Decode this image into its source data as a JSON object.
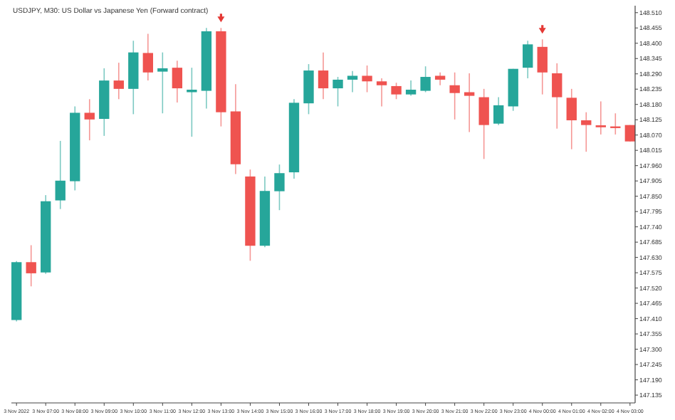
{
  "chart_data": {
    "type": "candlestick",
    "title": "USDJPY, M30: US Dollar vs Japanese Yen (Forward contract)",
    "categories": [
      "3 Nov 2022",
      null,
      "3 Nov 07:00",
      null,
      "3 Nov 08:00",
      null,
      "3 Nov 09:00",
      null,
      "3 Nov 10:00",
      null,
      "3 Nov 11:00",
      null,
      "3 Nov 12:00",
      null,
      "3 Nov 13:00",
      null,
      "3 Nov 14:00",
      null,
      "3 Nov 15:00",
      null,
      "3 Nov 16:00",
      null,
      "3 Nov 17:00",
      null,
      "3 Nov 18:00",
      null,
      "3 Nov 19:00",
      null,
      "3 Nov 20:00",
      null,
      "3 Nov 21:00",
      null,
      "3 Nov 22:00",
      null,
      "3 Nov 23:00",
      null,
      "4 Nov 00:00",
      null,
      "4 Nov 01:00",
      null,
      "4 Nov 02:00",
      null,
      "4 Nov 03:00"
    ],
    "ohlc": [
      [
        147.405,
        147.617,
        147.4,
        147.613
      ],
      [
        147.613,
        147.674,
        147.526,
        147.573
      ],
      [
        147.576,
        147.854,
        147.571,
        147.832
      ],
      [
        147.835,
        148.049,
        147.804,
        147.906
      ],
      [
        147.904,
        148.173,
        147.871,
        148.15
      ],
      [
        148.15,
        148.199,
        148.051,
        148.126
      ],
      [
        148.128,
        148.31,
        148.067,
        148.266
      ],
      [
        148.266,
        148.33,
        148.199,
        148.236
      ],
      [
        148.236,
        148.409,
        148.145,
        148.367
      ],
      [
        148.365,
        148.434,
        148.266,
        148.295
      ],
      [
        148.298,
        148.367,
        148.148,
        148.31
      ],
      [
        148.312,
        148.337,
        148.187,
        148.238
      ],
      [
        148.224,
        148.312,
        148.064,
        148.233
      ],
      [
        148.229,
        148.455,
        148.165,
        148.443
      ],
      [
        148.443,
        148.455,
        148.101,
        148.152
      ],
      [
        148.155,
        148.253,
        147.93,
        147.965
      ],
      [
        147.921,
        147.946,
        147.618,
        147.672
      ],
      [
        147.672,
        147.921,
        147.667,
        147.869
      ],
      [
        147.868,
        147.964,
        147.8,
        147.933
      ],
      [
        147.936,
        148.199,
        147.913,
        148.186
      ],
      [
        148.184,
        148.325,
        148.145,
        148.302
      ],
      [
        148.302,
        148.367,
        148.199,
        148.238
      ],
      [
        148.238,
        148.279,
        148.173,
        148.269
      ],
      [
        148.269,
        148.3,
        148.224,
        148.283
      ],
      [
        148.283,
        148.32,
        148.224,
        148.263
      ],
      [
        148.263,
        148.274,
        148.173,
        148.249
      ],
      [
        148.246,
        148.258,
        148.199,
        148.216
      ],
      [
        148.216,
        148.266,
        148.211,
        148.233
      ],
      [
        148.229,
        148.317,
        148.224,
        148.279
      ],
      [
        148.283,
        148.295,
        148.249,
        148.269
      ],
      [
        148.249,
        148.295,
        148.126,
        148.221
      ],
      [
        148.224,
        148.292,
        148.081,
        148.211
      ],
      [
        148.206,
        148.236,
        147.984,
        148.106
      ],
      [
        148.111,
        148.206,
        148.106,
        148.177
      ],
      [
        148.173,
        148.308,
        148.157,
        148.308
      ],
      [
        148.312,
        148.409,
        148.274,
        148.396
      ],
      [
        148.387,
        148.414,
        148.216,
        148.295
      ],
      [
        148.292,
        148.328,
        148.093,
        148.206
      ],
      [
        148.204,
        148.236,
        148.019,
        148.123
      ],
      [
        148.123,
        148.152,
        148.01,
        148.106
      ],
      [
        148.105,
        148.191,
        148.072,
        148.098
      ],
      [
        148.101,
        148.148,
        148.072,
        148.095
      ],
      [
        148.106,
        148.106,
        148.047,
        148.047
      ]
    ],
    "colors": [
      "#26a69a",
      "#ef5350",
      "#26a69a",
      "#26a69a",
      "#26a69a",
      "#ef5350",
      "#26a69a",
      "#ef5350",
      "#26a69a",
      "#ef5350",
      "#26a69a",
      "#ef5350",
      "#26a69a",
      "#26a69a",
      "#ef5350",
      "#ef5350",
      "#ef5350",
      "#26a69a",
      "#26a69a",
      "#26a69a",
      "#26a69a",
      "#ef5350",
      "#26a69a",
      "#26a69a",
      "#ef5350",
      "#ef5350",
      "#ef5350",
      "#26a69a",
      "#26a69a",
      "#ef5350",
      "#ef5350",
      "#ef5350",
      "#ef5350",
      "#26a69a",
      "#26a69a",
      "#26a69a",
      "#ef5350",
      "#ef5350",
      "#ef5350",
      "#ef5350",
      "#ef5350",
      "#ef5350",
      "#ef5350"
    ],
    "ylim": [
      147.107,
      148.535
    ],
    "yticks": [
      {
        "value": 148.51,
        "label": "148.510"
      },
      {
        "value": 148.455,
        "label": "148.455"
      },
      {
        "value": 148.4,
        "label": "148.400"
      },
      {
        "value": 148.345,
        "label": "148.345"
      },
      {
        "value": 148.29,
        "label": "148.290"
      },
      {
        "value": 148.235,
        "label": "148.235"
      },
      {
        "value": 148.18,
        "label": "148.180"
      },
      {
        "value": 148.125,
        "label": "148.125"
      },
      {
        "value": 148.07,
        "label": "148.070"
      },
      {
        "value": 148.015,
        "label": "148.015"
      },
      {
        "value": 147.96,
        "label": "147.960"
      },
      {
        "value": 147.905,
        "label": "147.905"
      },
      {
        "value": 147.85,
        "label": "147.850"
      },
      {
        "value": 147.795,
        "label": "147.795"
      },
      {
        "value": 147.74,
        "label": "147.740"
      },
      {
        "value": 147.685,
        "label": "147.685"
      },
      {
        "value": 147.63,
        "label": "147.630"
      },
      {
        "value": 147.575,
        "label": "147.575"
      },
      {
        "value": 147.52,
        "label": "147.520"
      },
      {
        "value": 147.465,
        "label": "147.465"
      },
      {
        "value": 147.41,
        "label": "147.410"
      },
      {
        "value": 147.355,
        "label": "147.355"
      },
      {
        "value": 147.3,
        "label": "147.300"
      },
      {
        "value": 147.245,
        "label": "147.245"
      },
      {
        "value": 147.19,
        "label": "147.190"
      },
      {
        "value": 147.135,
        "label": "147.135"
      }
    ]
  }
}
